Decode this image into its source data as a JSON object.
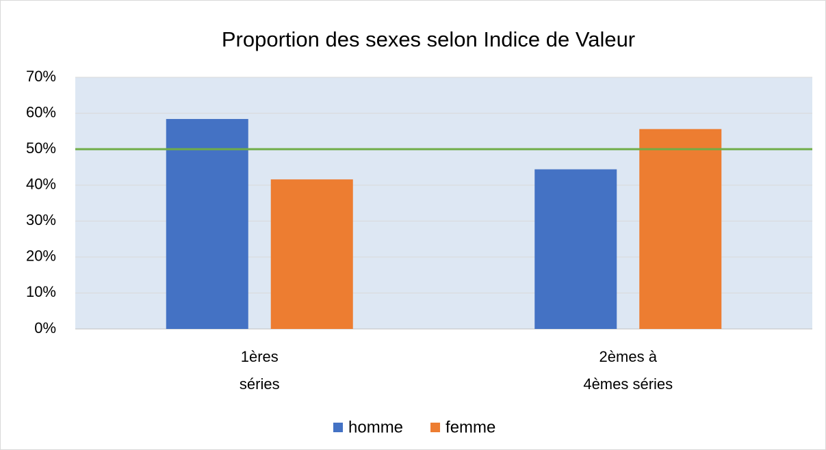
{
  "chart_data": {
    "type": "bar",
    "title": "Proportion des sexes selon Indice de Valeur",
    "categories": [
      [
        "1ères",
        "séries"
      ],
      [
        "2èmes à",
        "4èmes séries"
      ]
    ],
    "series": [
      {
        "name": "homme",
        "color": "#4472c4",
        "values": [
          58.4,
          44.4
        ]
      },
      {
        "name": "femme",
        "color": "#ed7d31",
        "values": [
          41.6,
          55.6
        ]
      }
    ],
    "reference_line": {
      "value": 50,
      "color": "#70ad47"
    },
    "ylim": [
      0,
      70
    ],
    "yticks": [
      {
        "value": 0,
        "label": "0%"
      },
      {
        "value": 10,
        "label": "10%"
      },
      {
        "value": 20,
        "label": "20%"
      },
      {
        "value": 30,
        "label": "30%"
      },
      {
        "value": 40,
        "label": "40%"
      },
      {
        "value": 50,
        "label": "50%"
      },
      {
        "value": 60,
        "label": "60%"
      },
      {
        "value": 70,
        "label": "70%"
      }
    ],
    "grid": true,
    "legend": "bottom"
  }
}
